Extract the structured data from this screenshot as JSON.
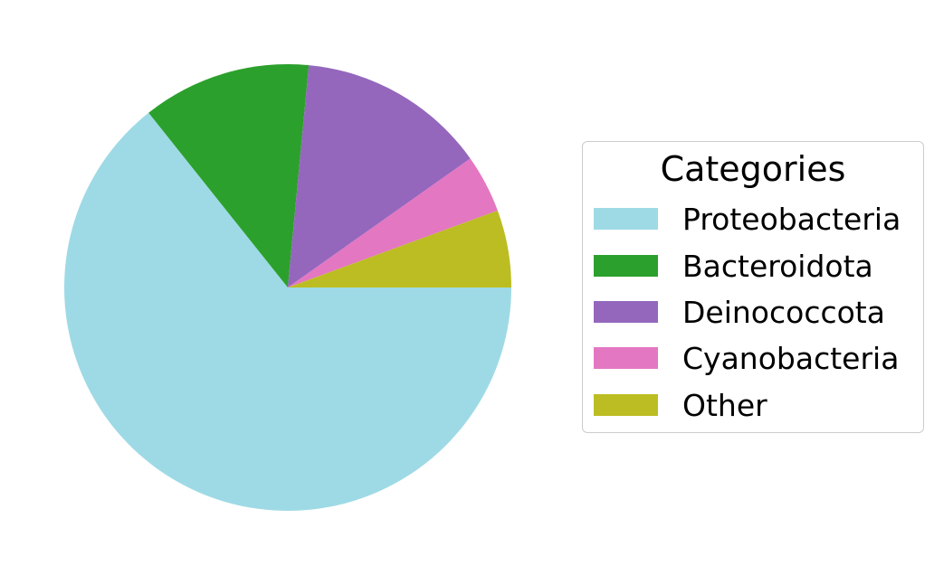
{
  "chart_data": {
    "type": "pie",
    "title": "",
    "start_angle_deg": 0,
    "direction": "clockwise",
    "categories": [
      "Proteobacteria",
      "Bacteroidota",
      "Deinococcota",
      "Cyanobacteria",
      "Other"
    ],
    "values": [
      64.3,
      12.2,
      13.7,
      4.2,
      5.6
    ],
    "value_unit": "percent",
    "colors": [
      "#9edae5",
      "#2ca02c",
      "#9467bd",
      "#e377c2",
      "#bcbd22"
    ],
    "legend": {
      "title": "Categories",
      "placement": "right"
    }
  }
}
